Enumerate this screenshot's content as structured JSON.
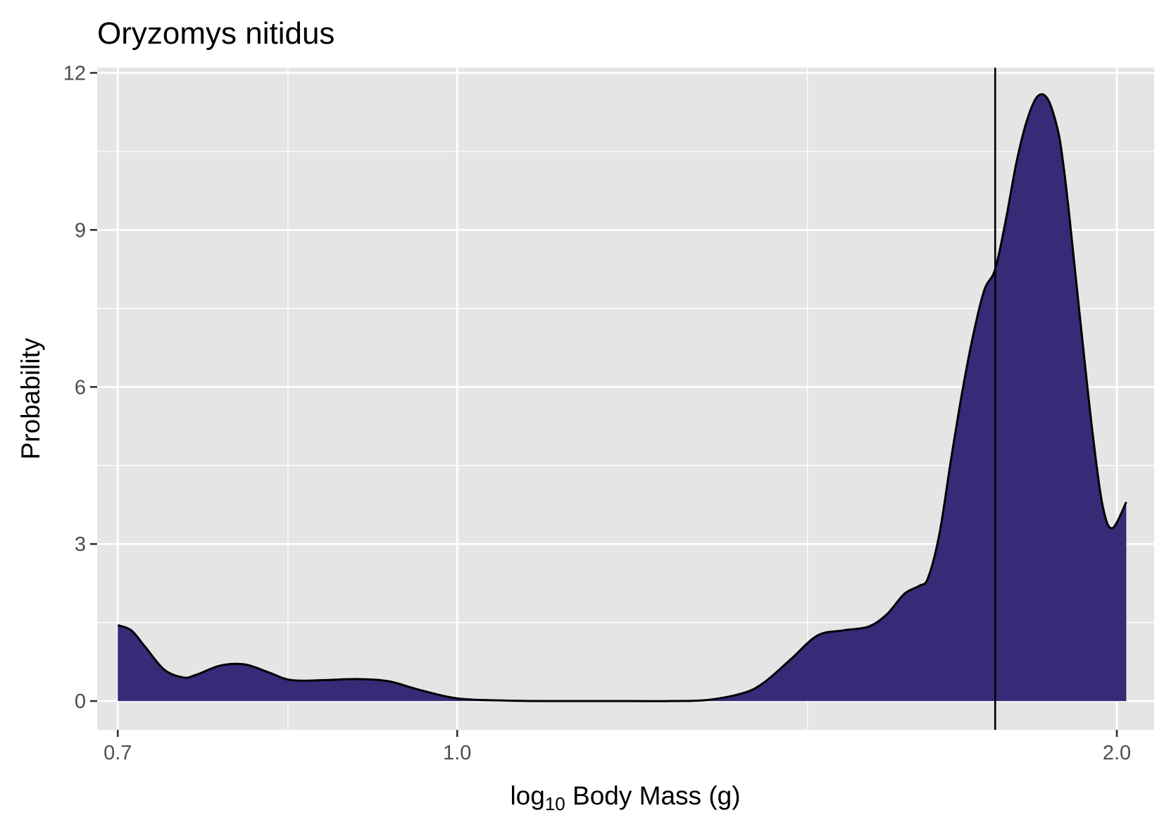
{
  "chart_data": {
    "type": "area",
    "title": "Oryzomys nitidus",
    "xlabel": {
      "base": "log",
      "subscript": "10",
      "rest": " Body Mass (g)"
    },
    "ylabel": "Probability",
    "x_scale": "log10",
    "xlim": [
      0.685,
      2.08
    ],
    "ylim": [
      -0.55,
      12.1
    ],
    "x_ticks": [
      {
        "value": 0.7,
        "label": "0.7"
      },
      {
        "value": 1.0,
        "label": "1.0"
      },
      {
        "value": 2.0,
        "label": "2.0"
      }
    ],
    "x_minor_gridlines": [
      0.837,
      1.445
    ],
    "y_ticks": [
      {
        "value": 0,
        "label": "0"
      },
      {
        "value": 3,
        "label": "3"
      },
      {
        "value": 6,
        "label": "6"
      },
      {
        "value": 9,
        "label": "9"
      },
      {
        "value": 12,
        "label": "12"
      }
    ],
    "y_minor_gridlines": [
      1.5,
      4.5,
      7.5,
      10.5
    ],
    "grid": true,
    "background": "#e5e5e5",
    "fill_color": "#382a77",
    "line_color": "#000000",
    "vline_x": 1.76,
    "density": {
      "x": [
        0.7,
        0.71,
        0.72,
        0.735,
        0.75,
        0.76,
        0.78,
        0.8,
        0.82,
        0.84,
        0.87,
        0.9,
        0.93,
        0.96,
        1.0,
        1.05,
        1.1,
        1.2,
        1.25,
        1.3,
        1.35,
        1.38,
        1.42,
        1.46,
        1.5,
        1.54,
        1.57,
        1.6,
        1.625,
        1.64,
        1.66,
        1.68,
        1.7,
        1.72,
        1.74,
        1.76,
        1.78,
        1.8,
        1.82,
        1.84,
        1.86,
        1.88,
        1.89,
        1.9,
        1.91,
        1.93,
        1.95,
        1.97,
        1.99,
        2.02
      ],
      "y": [
        1.45,
        1.35,
        1.05,
        0.6,
        0.45,
        0.5,
        0.68,
        0.7,
        0.55,
        0.4,
        0.4,
        0.42,
        0.38,
        0.22,
        0.05,
        0.01,
        0.0,
        0.0,
        0.0,
        0.02,
        0.15,
        0.35,
        0.8,
        1.25,
        1.35,
        1.42,
        1.65,
        2.05,
        2.2,
        2.35,
        3.2,
        4.6,
        5.9,
        7.0,
        7.85,
        8.25,
        9.2,
        10.3,
        11.1,
        11.55,
        11.5,
        10.9,
        10.3,
        9.5,
        8.6,
        6.8,
        5.1,
        3.75,
        3.3,
        3.8
      ]
    }
  }
}
